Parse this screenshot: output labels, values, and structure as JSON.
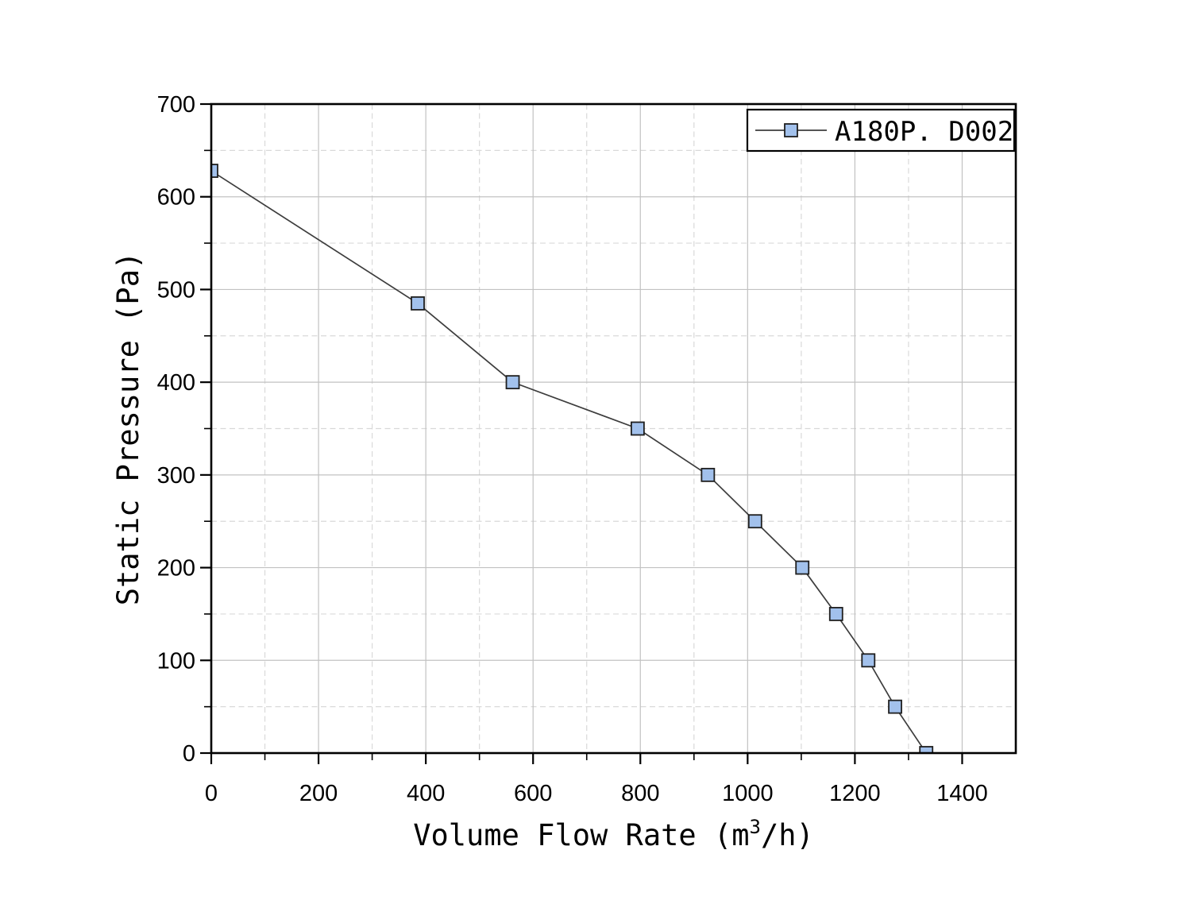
{
  "page": {
    "background": "#ffffff"
  },
  "chart_data": {
    "type": "line",
    "title": "",
    "xlabel": "Volume Flow Rate (m³/h)",
    "ylabel": "Static Pressure (Pa)",
    "xlim": [
      0,
      1500
    ],
    "ylim": [
      0,
      700
    ],
    "x_major_tick_step": 200,
    "x_minor_tick_step": 100,
    "y_major_tick_step": 100,
    "y_minor_tick_step": 50,
    "x_tick_labels": [
      "0",
      "200",
      "400",
      "600",
      "800",
      "1000",
      "1200",
      "1400"
    ],
    "y_tick_labels": [
      "0",
      "100",
      "200",
      "300",
      "400",
      "500",
      "600",
      "700"
    ],
    "grid": {
      "major_style": "solid",
      "minor_style": "dashed",
      "major_color": "#c2c2c2",
      "minor_color": "#d9d9d9",
      "shown": true
    },
    "axis_color": "#000000",
    "legend": {
      "position": "top-right",
      "border_color": "#000000",
      "background": "#ffffff",
      "entries": [
        {
          "label": "A180P. D002",
          "marker": "square"
        }
      ]
    },
    "series": [
      {
        "name": "A180P. D002",
        "line_color": "#3d3d3d",
        "marker": "square",
        "marker_fill": "#a2c1ec",
        "marker_edge": "#1f1f1f",
        "points": [
          [
            0,
            628
          ],
          [
            385,
            485
          ],
          [
            562,
            400
          ],
          [
            795,
            350
          ],
          [
            926,
            300
          ],
          [
            1014,
            250
          ],
          [
            1102,
            200
          ],
          [
            1165,
            150
          ],
          [
            1225,
            100
          ],
          [
            1275,
            50
          ],
          [
            1333,
            0
          ]
        ]
      }
    ]
  }
}
